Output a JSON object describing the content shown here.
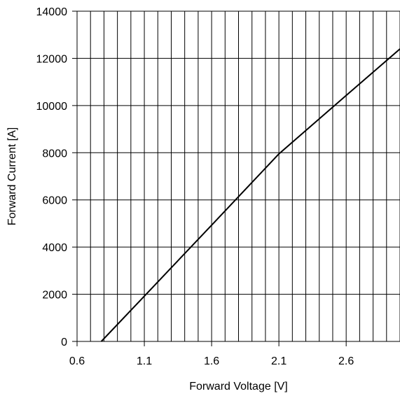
{
  "chart_data": {
    "type": "line",
    "title": "",
    "xlabel": "Forward Voltage [V]",
    "ylabel": "Forward Current [A]",
    "xlim": [
      0.6,
      3.0
    ],
    "ylim": [
      0,
      14000
    ],
    "xticks": [
      0.6,
      1.1,
      1.6,
      2.1,
      2.6
    ],
    "xtick_labels": [
      "0.6",
      "1.1",
      "1.6",
      "2.1",
      "2.6"
    ],
    "yticks": [
      0,
      2000,
      4000,
      6000,
      8000,
      10000,
      12000,
      14000
    ],
    "ytick_labels": [
      "0",
      "2000",
      "4000",
      "6000",
      "8000",
      "10000",
      "12000",
      "14000"
    ],
    "x_grid_step": 0.1,
    "grid": true,
    "series": [
      {
        "x": [
          0.78,
          1.1,
          1.6,
          2.1,
          2.6,
          3.0
        ],
        "y": [
          0,
          1920,
          4930,
          7950,
          10430,
          12400
        ]
      }
    ]
  }
}
